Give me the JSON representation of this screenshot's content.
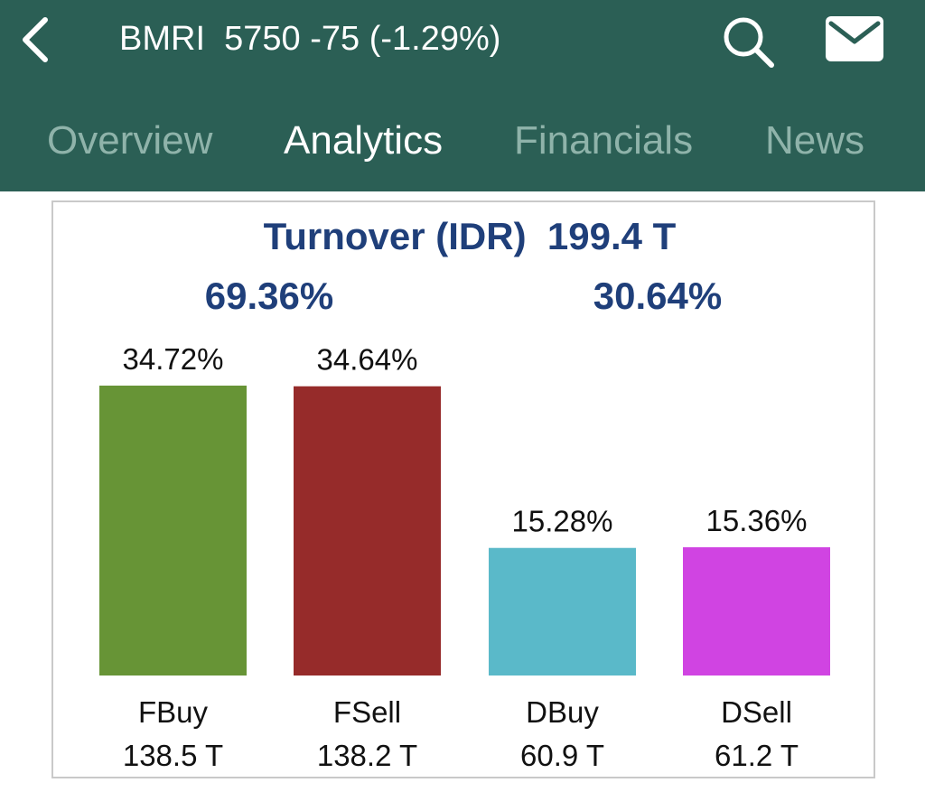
{
  "header": {
    "ticker_line": "BMRI  5750 -75 (-1.29%)",
    "back_icon": "chevron-left-icon",
    "search_icon": "search-icon",
    "mail_icon": "mail-icon",
    "background_color": "#2b5f55"
  },
  "tabs": [
    {
      "label": "Overview",
      "active": false
    },
    {
      "label": "Analytics",
      "active": true
    },
    {
      "label": "Financials",
      "active": false
    },
    {
      "label": "News",
      "active": false
    }
  ],
  "summary": {
    "turnover_line": "Turnover (IDR)  199.4 T",
    "foreign_pct": "69.36%",
    "domestic_pct": "30.64%"
  },
  "chart_data": {
    "type": "bar",
    "title": "Turnover (IDR)  199.4 T",
    "categories": [
      "FBuy",
      "FSell",
      "DBuy",
      "DSell"
    ],
    "values": [
      34.72,
      34.64,
      15.28,
      15.36
    ],
    "value_labels": [
      "34.72%",
      "34.64%",
      "15.28%",
      "15.36%"
    ],
    "amounts": [
      "138.5 T",
      "138.2 T",
      "60.9 T",
      "61.2 T"
    ],
    "colors": [
      "#679436",
      "#962b2a",
      "#5ab9c9",
      "#d044e2"
    ],
    "ylim": [
      0,
      34.72
    ],
    "grid": false,
    "legend": "none"
  }
}
